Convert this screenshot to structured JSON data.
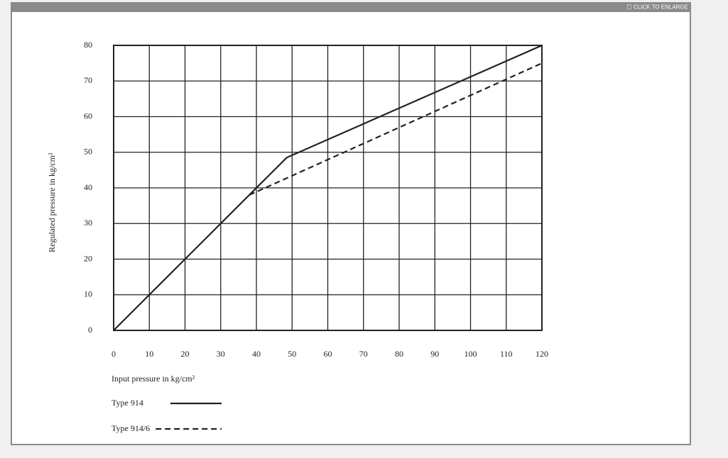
{
  "ui": {
    "enlarge_button": "☐ CLICK TO ENLARGE"
  },
  "chart_data": {
    "type": "line",
    "x_label": "Input pressure in kg/cm²",
    "y_label": "Regulated pressure in kg/cm²",
    "xlim": [
      0,
      120
    ],
    "ylim": [
      0,
      80
    ],
    "xticks": [
      0,
      10,
      20,
      30,
      40,
      50,
      60,
      70,
      80,
      90,
      100,
      110,
      120
    ],
    "yticks": [
      0,
      10,
      20,
      30,
      40,
      50,
      60,
      70,
      80
    ],
    "grid": true,
    "series": [
      {
        "name": "Type 914",
        "color": "#222222",
        "dash": "solid",
        "x": [
          0,
          48.5,
          120
        ],
        "values": [
          0,
          48.5,
          80
        ]
      },
      {
        "name": "Type 914/6",
        "color": "#222222",
        "dash": "dashed",
        "x": [
          38,
          120
        ],
        "values": [
          38,
          75
        ]
      }
    ]
  }
}
